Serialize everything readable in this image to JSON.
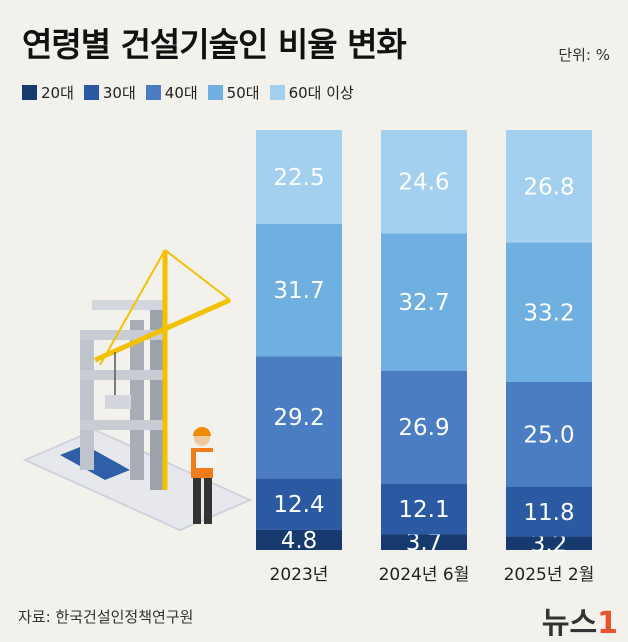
{
  "title": "연령별 건설기술인 비율 변화",
  "unit": "단위: %",
  "source": "자료: 한국건설인정책연구원",
  "logo": {
    "text": "뉴스",
    "mark": "1"
  },
  "colors": {
    "20대": "#163a6e",
    "30대": "#2b5aa3",
    "40대": "#4a7dc2",
    "50대": "#6fb0e0",
    "60대 이상": "#a3d0ef"
  },
  "chart_data": {
    "type": "bar",
    "stacked": true,
    "categories": [
      "2023년",
      "2024년 6월",
      "2025년 2월"
    ],
    "series": [
      {
        "name": "20대",
        "values": [
          4.8,
          3.7,
          3.2
        ]
      },
      {
        "name": "30대",
        "values": [
          12.4,
          12.1,
          11.8
        ]
      },
      {
        "name": "40대",
        "values": [
          29.2,
          26.9,
          25.0
        ]
      },
      {
        "name": "50대",
        "values": [
          31.7,
          32.7,
          33.2
        ]
      },
      {
        "name": "60대 이상",
        "values": [
          22.5,
          24.6,
          26.8
        ]
      }
    ],
    "title": "연령별 건설기술인 비율 변화",
    "ylim": [
      0,
      100
    ],
    "grid": false,
    "legend": "top-left"
  }
}
